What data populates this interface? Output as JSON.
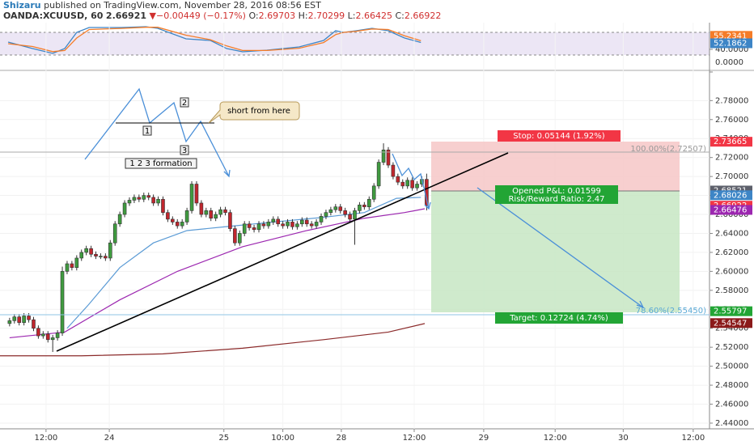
{
  "header": {
    "author": "Shizaru",
    "published": "published on TradingView.com, November 28, 2016 08:56 EST",
    "symbol": "OANDA:XCUUSD, 60",
    "last": 2.66921,
    "change": "−0.00449 (−0.17%)",
    "ohlc": [
      {
        "label": "O:",
        "value": 2.69703
      },
      {
        "label": "H:",
        "value": 2.70299
      },
      {
        "label": "L:",
        "value": 2.66425
      },
      {
        "label": "C:",
        "value": 2.66922
      }
    ]
  },
  "chart_data": [
    {
      "type": "line",
      "xlim": [
        0,
        148
      ],
      "ylim": [
        0,
        100
      ],
      "levels": [
        30,
        70
      ],
      "band_color": "#ece6f5",
      "yticks": [
        {
          "value": 40,
          "label": "40.0000"
        },
        {
          "value": 0,
          "label": "0.0000"
        }
      ],
      "price_labels": [
        {
          "value": 55.2341,
          "color": "#f57c28"
        },
        {
          "value": 52.1862,
          "color": "#3d85c6"
        }
      ],
      "series": [
        {
          "color": "#3d85c6",
          "x": [
            1.7,
            6.8,
            11,
            13.5,
            16,
            18.6,
            25.3,
            30.4,
            32.9,
            38.8,
            43.9,
            47.3,
            50.6,
            55.7,
            62.4,
            67.5,
            70,
            71.7,
            74.3,
            77.6,
            81,
            84.4,
            87.8
          ],
          "values": [
            52.9,
            41.4,
            32.9,
            41.4,
            70,
            78.6,
            78.6,
            80,
            77.1,
            58.6,
            55.7,
            41.4,
            35.7,
            38.6,
            44.3,
            55.7,
            72.9,
            70,
            72.9,
            77.1,
            72.9,
            60,
            52.2
          ]
        },
        {
          "color": "#f57c28",
          "x": [
            1.7,
            6.8,
            11,
            13.5,
            16,
            18.6,
            25.3,
            30.4,
            32.9,
            38.8,
            43.9,
            47.3,
            50.6,
            55.7,
            62.4,
            67.5,
            70,
            71.7,
            74.3,
            77.6,
            81,
            84.4,
            87.8
          ],
          "values": [
            50,
            45,
            36,
            38,
            60,
            75,
            77,
            79,
            79,
            65,
            57,
            46,
            38,
            38,
            42,
            52,
            66,
            70,
            72,
            76,
            75,
            64,
            55.2
          ]
        }
      ]
    },
    {
      "type": "candlestick",
      "xlim": [
        0,
        148
      ],
      "ylim": [
        2.434,
        2.811
      ],
      "up_color": "#3f9b3f",
      "down_color": "#c0262d",
      "xticks": [
        {
          "value": 9.6,
          "label": "12:00"
        },
        {
          "value": 22.8,
          "label": "24"
        },
        {
          "value": 46.7,
          "label": "25"
        },
        {
          "value": 59,
          "label": "10:00"
        },
        {
          "value": 71.2,
          "label": "28"
        },
        {
          "value": 86.4,
          "label": "12:00"
        },
        {
          "value": 100.9,
          "label": "29"
        },
        {
          "value": 115.8,
          "label": "12:00"
        },
        {
          "value": 130,
          "label": "30"
        },
        {
          "value": 144.6,
          "label": "12:00"
        }
      ],
      "yticks": [
        {
          "value": 2.44,
          "label": "2.44000"
        },
        {
          "value": 2.46,
          "label": "2.46000"
        },
        {
          "value": 2.48,
          "label": "2.48000"
        },
        {
          "value": 2.5,
          "label": "2.50000"
        },
        {
          "value": 2.52,
          "label": "2.52000"
        },
        {
          "value": 2.54,
          "label": "2.54000"
        },
        {
          "value": 2.56,
          "label": "2.56000"
        },
        {
          "value": 2.58,
          "label": "2.58000"
        },
        {
          "value": 2.6,
          "label": "2.60000"
        },
        {
          "value": 2.62,
          "label": "2.62000"
        },
        {
          "value": 2.64,
          "label": "2.64000"
        },
        {
          "value": 2.66,
          "label": "2.66000"
        },
        {
          "value": 2.68,
          "label": "2.68000"
        },
        {
          "value": 2.7,
          "label": "2.70000"
        },
        {
          "value": 2.72,
          "label": "2.72000"
        },
        {
          "value": 2.74,
          "label": "2.74000"
        },
        {
          "value": 2.76,
          "label": "2.76000"
        },
        {
          "value": 2.78,
          "label": "2.78000"
        }
      ],
      "price_labels": [
        {
          "value": 2.73665,
          "color": "#f23645"
        },
        {
          "value": 2.68521,
          "color": "#5d606b"
        },
        {
          "value": 2.68026,
          "color": "#3d85c6"
        },
        {
          "value": 2.66922,
          "color": "#f23645"
        },
        {
          "value": 2.66476,
          "color": "#9c27b0"
        },
        {
          "value": 2.55797,
          "color": "#22a535"
        },
        {
          "value": 2.54547,
          "color": "#8b1a1a"
        }
      ],
      "x": [
        2,
        3,
        4,
        5,
        6,
        7,
        8,
        9,
        10,
        11,
        12,
        13,
        14,
        15,
        16,
        17,
        18,
        19,
        20,
        21,
        22,
        23,
        24,
        25,
        26,
        27,
        28,
        29,
        30,
        31,
        32,
        33,
        34,
        35,
        36,
        37,
        38,
        39,
        40,
        41,
        42,
        43,
        44,
        45,
        46,
        47,
        48,
        49,
        50,
        51,
        52,
        53,
        54,
        55,
        56,
        57,
        58,
        59,
        60,
        61,
        62,
        63,
        64,
        65,
        66,
        67,
        68,
        69,
        70,
        71,
        72,
        73,
        74,
        75,
        76,
        77,
        78,
        79,
        80,
        81,
        82,
        83,
        84,
        85,
        86,
        87,
        88,
        89
      ],
      "open": [
        2.545,
        2.548,
        2.552,
        2.546,
        2.553,
        2.549,
        2.54,
        2.532,
        2.534,
        2.528,
        2.53,
        2.535,
        2.6,
        2.608,
        2.604,
        2.614,
        2.62,
        2.624,
        2.618,
        2.616,
        2.616,
        2.614,
        2.63,
        2.65,
        2.66,
        2.672,
        2.675,
        2.678,
        2.676,
        2.68,
        2.678,
        2.672,
        2.676,
        2.662,
        2.655,
        2.652,
        2.648,
        2.652,
        2.664,
        2.692,
        2.672,
        2.66,
        2.664,
        2.656,
        2.66,
        2.665,
        2.662,
        2.645,
        2.63,
        2.64,
        2.65,
        2.646,
        2.644,
        2.65,
        2.648,
        2.652,
        2.655,
        2.65,
        2.648,
        2.652,
        2.647,
        2.65,
        2.654,
        2.65,
        2.648,
        2.652,
        2.658,
        2.662,
        2.665,
        2.668,
        2.664,
        2.66,
        2.655,
        2.664,
        2.67,
        2.668,
        2.676,
        2.69,
        2.715,
        2.728,
        2.712,
        2.7,
        2.694,
        2.69,
        2.696,
        2.688,
        2.692,
        2.69703
      ],
      "high": [
        2.551,
        2.555,
        2.555,
        2.556,
        2.556,
        2.552,
        2.543,
        2.537,
        2.537,
        2.533,
        2.538,
        2.605,
        2.611,
        2.611,
        2.617,
        2.623,
        2.627,
        2.627,
        2.621,
        2.619,
        2.619,
        2.633,
        2.653,
        2.663,
        2.675,
        2.678,
        2.681,
        2.681,
        2.683,
        2.683,
        2.681,
        2.679,
        2.679,
        2.665,
        2.658,
        2.655,
        2.655,
        2.667,
        2.695,
        2.695,
        2.675,
        2.667,
        2.667,
        2.663,
        2.668,
        2.668,
        2.665,
        2.648,
        2.643,
        2.653,
        2.653,
        2.649,
        2.653,
        2.653,
        2.655,
        2.658,
        2.658,
        2.653,
        2.655,
        2.655,
        2.653,
        2.657,
        2.657,
        2.653,
        2.655,
        2.661,
        2.665,
        2.668,
        2.671,
        2.671,
        2.667,
        2.663,
        2.667,
        2.673,
        2.673,
        2.679,
        2.693,
        2.718,
        2.735,
        2.731,
        2.715,
        2.703,
        2.697,
        2.699,
        2.699,
        2.695,
        2.7,
        2.70299
      ],
      "low": [
        2.542,
        2.545,
        2.543,
        2.543,
        2.546,
        2.537,
        2.529,
        2.529,
        2.525,
        2.515,
        2.527,
        2.532,
        2.597,
        2.601,
        2.601,
        2.611,
        2.617,
        2.615,
        2.613,
        2.613,
        2.611,
        2.611,
        2.627,
        2.647,
        2.657,
        2.669,
        2.672,
        2.673,
        2.673,
        2.675,
        2.669,
        2.669,
        2.659,
        2.652,
        2.649,
        2.645,
        2.645,
        2.649,
        2.661,
        2.669,
        2.657,
        2.657,
        2.653,
        2.653,
        2.657,
        2.659,
        2.642,
        2.627,
        2.627,
        2.637,
        2.643,
        2.641,
        2.641,
        2.645,
        2.645,
        2.649,
        2.647,
        2.645,
        2.645,
        2.644,
        2.644,
        2.647,
        2.647,
        2.645,
        2.645,
        2.649,
        2.655,
        2.659,
        2.662,
        2.661,
        2.657,
        2.652,
        2.628,
        2.661,
        2.665,
        2.665,
        2.673,
        2.687,
        2.712,
        2.709,
        2.697,
        2.691,
        2.687,
        2.687,
        2.685,
        2.685,
        2.689,
        2.66425
      ],
      "close": [
        2.548,
        2.552,
        2.546,
        2.553,
        2.549,
        2.54,
        2.532,
        2.534,
        2.528,
        2.53,
        2.535,
        2.6,
        2.608,
        2.604,
        2.614,
        2.62,
        2.624,
        2.618,
        2.616,
        2.616,
        2.614,
        2.63,
        2.65,
        2.66,
        2.672,
        2.675,
        2.678,
        2.676,
        2.68,
        2.678,
        2.672,
        2.676,
        2.662,
        2.655,
        2.652,
        2.648,
        2.652,
        2.664,
        2.692,
        2.672,
        2.66,
        2.664,
        2.656,
        2.66,
        2.665,
        2.662,
        2.645,
        2.63,
        2.64,
        2.65,
        2.646,
        2.644,
        2.65,
        2.648,
        2.652,
        2.655,
        2.65,
        2.648,
        2.652,
        2.647,
        2.65,
        2.654,
        2.65,
        2.648,
        2.652,
        2.658,
        2.662,
        2.665,
        2.668,
        2.664,
        2.66,
        2.655,
        2.664,
        2.67,
        2.668,
        2.676,
        2.69,
        2.715,
        2.728,
        2.712,
        2.7,
        2.694,
        2.69,
        2.696,
        2.688,
        2.692,
        2.697,
        2.66922
      ],
      "lines": [
        {
          "color": "#5b9bd5",
          "x": [
            14,
            18.5,
            25,
            32,
            39,
            47,
            57,
            67.5,
            76,
            82.7,
            87.8
          ],
          "values": [
            2.54,
            2.565,
            2.604,
            2.63,
            2.643,
            2.647,
            2.652,
            2.657,
            2.662,
            2.677,
            2.678
          ]
        },
        {
          "color": "#9c27b0",
          "x": [
            2,
            13.5,
            25,
            37,
            50.6,
            64,
            76,
            84.4,
            88.6
          ],
          "values": [
            2.53,
            2.536,
            2.57,
            2.6,
            2.626,
            2.643,
            2.656,
            2.662,
            2.666
          ]
        },
        {
          "color": "#8b2a2a",
          "x": [
            0,
            17,
            34,
            50.6,
            67.5,
            81,
            88.6
          ],
          "values": [
            2.511,
            2.511,
            2.513,
            2.519,
            2.528,
            2.536,
            2.545
          ]
        }
      ],
      "annotations": {
        "short": "short from here",
        "formation": "1 2 3 formation",
        "points": [
          "1",
          "2",
          "3"
        ]
      },
      "position": {
        "stop": "Stop: 0.05144 (1.92%)",
        "pnl": "Opened P&L: 0.01599",
        "rr": "Risk/Reward Ratio: 2.47",
        "target": "Target: 0.12724 (4.74%)"
      },
      "fib": [
        "100.00%(2.72507)",
        "78.60%(2.55450)"
      ]
    }
  ]
}
